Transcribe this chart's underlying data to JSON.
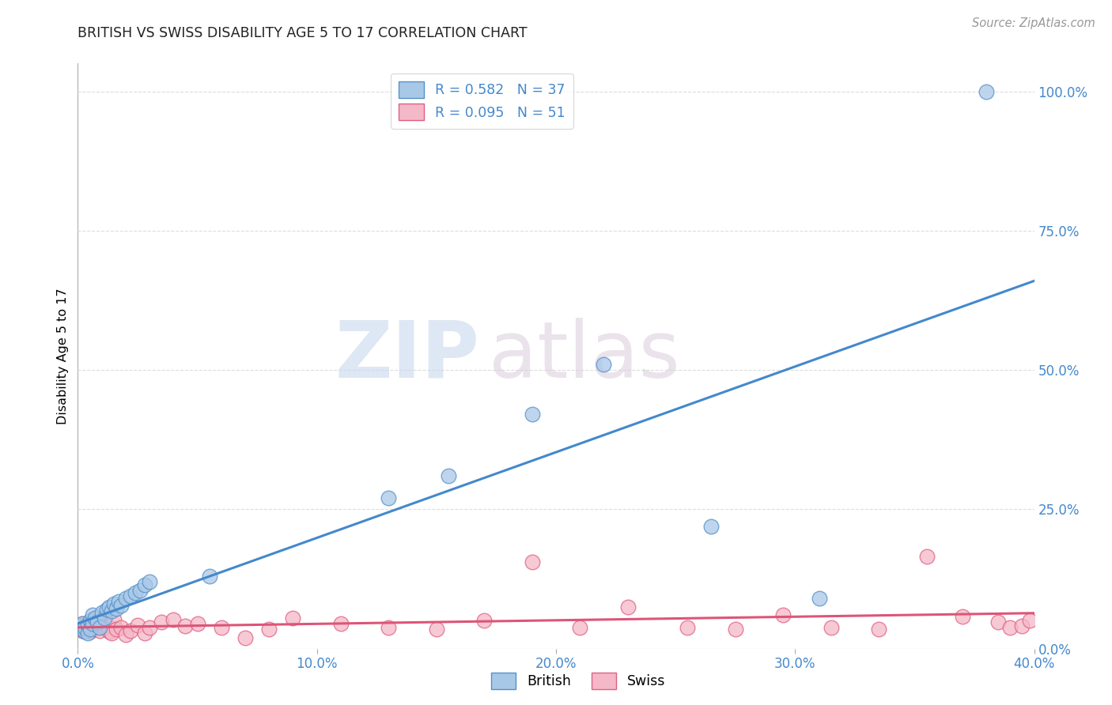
{
  "title": "BRITISH VS SWISS DISABILITY AGE 5 TO 17 CORRELATION CHART",
  "source": "Source: ZipAtlas.com",
  "ylabel": "Disability Age 5 to 17",
  "xlim": [
    0.0,
    0.4
  ],
  "ylim": [
    0.0,
    1.05
  ],
  "xticks": [
    0.0,
    0.1,
    0.2,
    0.3,
    0.4
  ],
  "xticklabels": [
    "0.0%",
    "10.0%",
    "20.0%",
    "30.0%",
    "40.0%"
  ],
  "yticks_right": [
    0.0,
    0.25,
    0.5,
    0.75,
    1.0
  ],
  "yticklabels_right": [
    "0.0%",
    "25.0%",
    "50.0%",
    "75.0%",
    "100.0%"
  ],
  "british_color": "#a8c8e8",
  "swiss_color": "#f4b8c8",
  "british_edge_color": "#5590c8",
  "swiss_edge_color": "#e06080",
  "british_line_color": "#4488cc",
  "swiss_line_color": "#dd5577",
  "british_R": 0.582,
  "british_N": 37,
  "swiss_R": 0.095,
  "swiss_N": 51,
  "legend_label_british": "British",
  "legend_label_swiss": "Swiss",
  "watermark_zip": "ZIP",
  "watermark_atlas": "atlas",
  "title_color": "#222222",
  "source_color": "#999999",
  "tick_color": "#4488cc",
  "grid_color": "#dddddd",
  "british_x": [
    0.001,
    0.002,
    0.002,
    0.003,
    0.003,
    0.004,
    0.004,
    0.005,
    0.005,
    0.006,
    0.006,
    0.007,
    0.008,
    0.009,
    0.01,
    0.011,
    0.012,
    0.013,
    0.014,
    0.015,
    0.016,
    0.017,
    0.018,
    0.02,
    0.022,
    0.024,
    0.026,
    0.028,
    0.03,
    0.055,
    0.13,
    0.155,
    0.19,
    0.22,
    0.265,
    0.31,
    0.38
  ],
  "british_y": [
    0.04,
    0.035,
    0.045,
    0.03,
    0.038,
    0.042,
    0.028,
    0.05,
    0.035,
    0.06,
    0.045,
    0.055,
    0.048,
    0.038,
    0.065,
    0.055,
    0.07,
    0.075,
    0.068,
    0.08,
    0.072,
    0.085,
    0.078,
    0.09,
    0.095,
    0.1,
    0.105,
    0.115,
    0.12,
    0.13,
    0.27,
    0.31,
    0.42,
    0.51,
    0.22,
    0.09,
    1.0
  ],
  "swiss_x": [
    0.001,
    0.002,
    0.002,
    0.003,
    0.003,
    0.004,
    0.005,
    0.005,
    0.006,
    0.007,
    0.008,
    0.009,
    0.01,
    0.011,
    0.012,
    0.013,
    0.014,
    0.015,
    0.016,
    0.018,
    0.02,
    0.022,
    0.025,
    0.028,
    0.03,
    0.035,
    0.04,
    0.045,
    0.05,
    0.06,
    0.07,
    0.08,
    0.09,
    0.11,
    0.13,
    0.15,
    0.17,
    0.19,
    0.21,
    0.23,
    0.255,
    0.275,
    0.295,
    0.315,
    0.335,
    0.355,
    0.37,
    0.385,
    0.39,
    0.395,
    0.398
  ],
  "swiss_y": [
    0.04,
    0.032,
    0.045,
    0.035,
    0.042,
    0.038,
    0.03,
    0.048,
    0.035,
    0.042,
    0.038,
    0.032,
    0.045,
    0.038,
    0.042,
    0.03,
    0.028,
    0.052,
    0.035,
    0.038,
    0.025,
    0.032,
    0.042,
    0.028,
    0.038,
    0.048,
    0.052,
    0.04,
    0.045,
    0.038,
    0.02,
    0.035,
    0.055,
    0.045,
    0.038,
    0.035,
    0.05,
    0.155,
    0.038,
    0.075,
    0.038,
    0.035,
    0.06,
    0.038,
    0.035,
    0.165,
    0.058,
    0.048,
    0.038,
    0.04,
    0.05
  ]
}
